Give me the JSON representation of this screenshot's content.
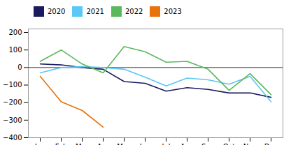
{
  "chart_data": {
    "type": "line",
    "categories": [
      "Jan",
      "Feb",
      "Mar",
      "Apr",
      "May",
      "Jun",
      "Jul",
      "Aug",
      "Sep",
      "Oct",
      "Nov",
      "Dec"
    ],
    "series": [
      {
        "name": "2020",
        "color": "#1a1a5e",
        "values": [
          20,
          15,
          0,
          -10,
          -80,
          -90,
          -135,
          -115,
          -125,
          -145,
          -145,
          -170
        ]
      },
      {
        "name": "2021",
        "color": "#5bc8f5",
        "values": [
          -30,
          0,
          5,
          0,
          -10,
          -55,
          -105,
          -60,
          -70,
          -95,
          -50,
          -195
        ]
      },
      {
        "name": "2022",
        "color": "#5cb85c",
        "values": [
          35,
          100,
          20,
          -30,
          120,
          90,
          30,
          35,
          -10,
          -130,
          -35,
          -155
        ]
      },
      {
        "name": "2023",
        "color": "#e8720c",
        "values": [
          -50,
          -195,
          -245,
          -340,
          null,
          null,
          null,
          null,
          null,
          null,
          null,
          null
        ]
      }
    ],
    "ylim": [
      -400,
      220
    ],
    "yticks": [
      -400,
      -300,
      -200,
      -100,
      0,
      100,
      200
    ],
    "grid": false,
    "legend": "top"
  }
}
